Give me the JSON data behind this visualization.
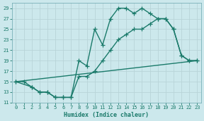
{
  "line1_x": [
    0,
    1,
    2,
    3,
    4,
    5,
    6,
    7,
    8,
    9,
    10,
    11,
    12,
    13,
    14,
    15,
    16,
    17,
    18,
    19,
    20,
    21,
    22,
    23
  ],
  "line1_y": [
    15,
    15,
    14,
    13,
    13,
    12,
    12,
    12,
    19,
    18,
    25,
    22,
    27,
    29,
    29,
    28,
    29,
    28,
    27,
    27,
    25,
    20,
    19,
    19
  ],
  "line2_x": [
    0,
    2,
    3,
    4,
    5,
    6,
    7,
    8,
    9,
    10,
    11,
    12,
    13,
    14,
    15,
    16,
    17,
    18,
    19,
    20,
    21,
    22,
    23
  ],
  "line2_y": [
    15,
    14,
    13,
    13,
    12,
    12,
    12,
    16,
    16,
    17,
    19,
    21,
    23,
    24,
    25,
    25,
    26,
    27,
    27,
    25,
    20,
    19,
    19
  ],
  "line3_x": [
    0,
    23
  ],
  "line3_y": [
    15,
    19
  ],
  "line_color": "#1a7a6a",
  "bg_color": "#cce8ec",
  "grid_major_color": "#b8d4d8",
  "grid_minor_color": "#d4e8ec",
  "xlabel": "Humidex (Indice chaleur)",
  "ylim": [
    11,
    30
  ],
  "xlim": [
    -0.5,
    23.5
  ],
  "yticks": [
    11,
    13,
    15,
    17,
    19,
    21,
    23,
    25,
    27,
    29
  ],
  "xticks": [
    0,
    1,
    2,
    3,
    4,
    5,
    6,
    7,
    8,
    9,
    10,
    11,
    12,
    13,
    14,
    15,
    16,
    17,
    18,
    19,
    20,
    21,
    22,
    23
  ],
  "marker": "+",
  "markersize": 4,
  "linewidth": 1.0
}
